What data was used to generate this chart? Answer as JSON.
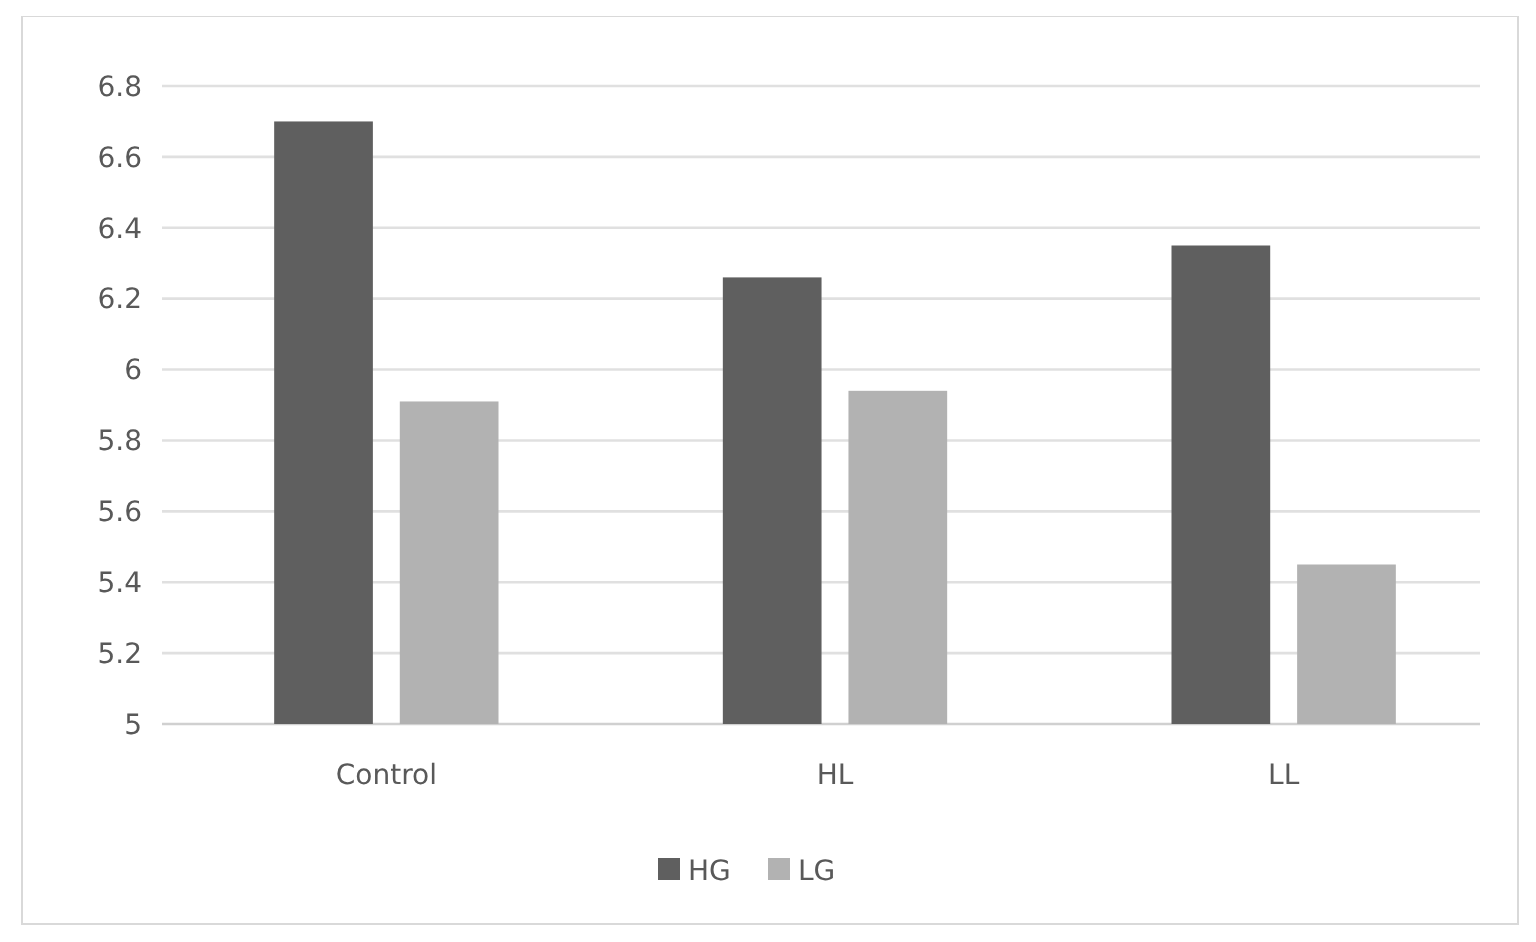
{
  "chart_data": {
    "type": "bar",
    "categories": [
      "Control",
      "HL",
      "LL"
    ],
    "series": [
      {
        "name": "HG",
        "color": "#5f5f5f",
        "values": [
          6.7,
          6.26,
          6.35
        ]
      },
      {
        "name": "LG",
        "color": "#b2b2b2",
        "values": [
          5.91,
          5.94,
          5.45
        ]
      }
    ],
    "ylim": [
      5,
      6.8
    ],
    "yticks": [
      5,
      5.2,
      5.4,
      5.6,
      5.8,
      6,
      6.2,
      6.4,
      6.6,
      6.8
    ],
    "grid": "y",
    "legend": "bottom"
  }
}
